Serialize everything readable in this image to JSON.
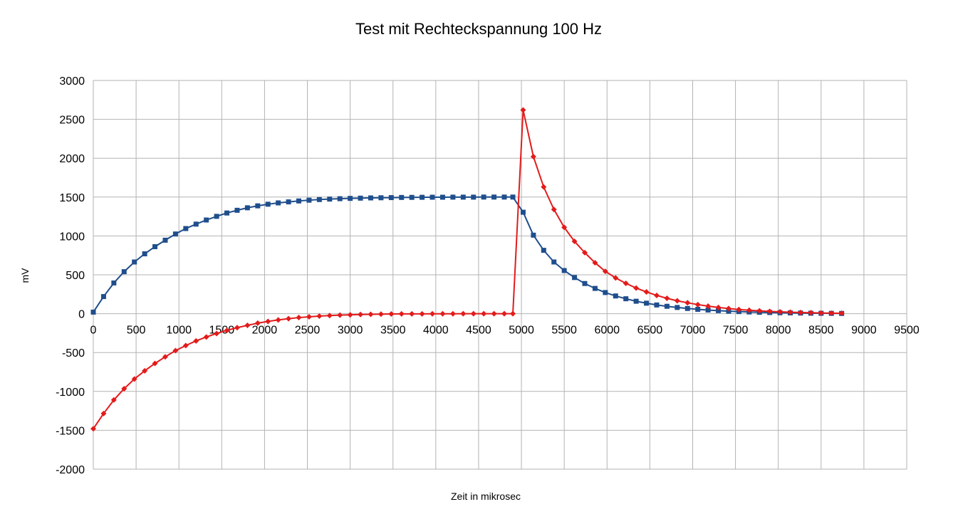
{
  "chart_data": {
    "type": "line",
    "title": "Test mit Rechteckspannung 100 Hz",
    "xlabel": "Zeit in mikrosec",
    "ylabel": "mV",
    "xlim": [
      0,
      9500
    ],
    "ylim": [
      -2000,
      3000
    ],
    "xticks": [
      0,
      500,
      1000,
      1500,
      2000,
      2500,
      3000,
      3500,
      4000,
      4500,
      5000,
      5500,
      6000,
      6500,
      7000,
      7500,
      8000,
      8500,
      9000,
      9500
    ],
    "yticks": [
      3000,
      2500,
      2000,
      1500,
      1000,
      500,
      0,
      -500,
      -1000,
      -1500,
      -2000
    ],
    "grid": true,
    "legend": false,
    "x": [
      0,
      120,
      240,
      360,
      480,
      600,
      720,
      840,
      960,
      1080,
      1200,
      1320,
      1440,
      1560,
      1680,
      1800,
      1920,
      2040,
      2160,
      2280,
      2400,
      2520,
      2640,
      2760,
      2880,
      3000,
      3120,
      3240,
      3360,
      3480,
      3600,
      3720,
      3840,
      3960,
      4080,
      4200,
      4320,
      4440,
      4560,
      4680,
      4800,
      4900,
      5020,
      5140,
      5260,
      5380,
      5500,
      5620,
      5740,
      5860,
      5980,
      6100,
      6220,
      6340,
      6460,
      6580,
      6700,
      6820,
      6940,
      7060,
      7180,
      7300,
      7420,
      7540,
      7660,
      7780,
      7900,
      8020,
      8140,
      8260,
      8380,
      8500,
      8620,
      8740
    ],
    "series": [
      {
        "color": "#1f4e8c",
        "marker": "square",
        "values": [
          20,
          220,
          395,
          540,
          665,
          770,
          862,
          945,
          1025,
          1095,
          1152,
          1205,
          1252,
          1295,
          1330,
          1362,
          1387,
          1408,
          1425,
          1438,
          1450,
          1460,
          1468,
          1474,
          1479,
          1483,
          1486,
          1489,
          1491,
          1493,
          1495,
          1496,
          1497,
          1498,
          1498,
          1499,
          1499,
          1499,
          1500,
          1500,
          1500,
          1500,
          1305,
          1010,
          815,
          665,
          555,
          465,
          388,
          325,
          272,
          228,
          192,
          160,
          135,
          112,
          95,
          80,
          67,
          56,
          47,
          39,
          32,
          27,
          22,
          18,
          15,
          12,
          10,
          8,
          6,
          5,
          4,
          3
        ]
      },
      {
        "color": "#e31b1b",
        "marker": "diamond",
        "values": [
          -1480,
          -1285,
          -1110,
          -965,
          -840,
          -735,
          -640,
          -555,
          -475,
          -410,
          -350,
          -300,
          -255,
          -215,
          -180,
          -150,
          -122,
          -100,
          -80,
          -64,
          -50,
          -40,
          -31,
          -24,
          -19,
          -15,
          -11,
          -8,
          -6,
          -4,
          -3,
          -2,
          -2,
          -1,
          -1,
          -1,
          0,
          0,
          0,
          0,
          0,
          0,
          2620,
          2020,
          1630,
          1340,
          1110,
          930,
          785,
          655,
          545,
          460,
          390,
          330,
          280,
          235,
          198,
          166,
          140,
          117,
          97,
          80,
          66,
          54,
          44,
          36,
          30,
          24,
          19,
          15,
          12,
          9,
          7,
          5
        ]
      }
    ]
  }
}
